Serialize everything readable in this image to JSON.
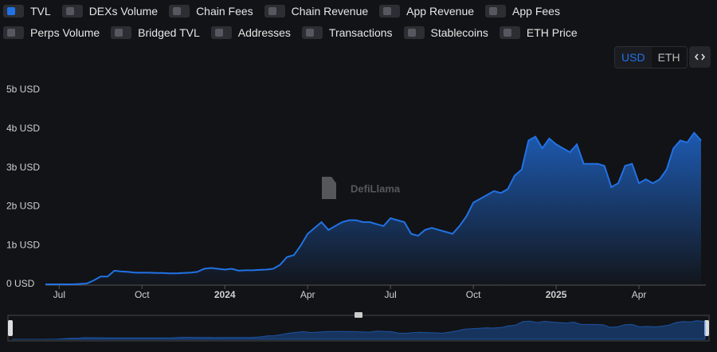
{
  "toggles": [
    "DEXs Volume",
    "Chain Fees",
    "Chain Revenue",
    "App Revenue",
    "App Fees",
    "Perps Volume",
    "Bridged TVL",
    "Addresses",
    "Transactions",
    "Stablecoins",
    "ETH Price"
  ],
  "currency": {
    "options": [
      "USD",
      "ETH"
    ],
    "active": 0
  },
  "chart_data": {
    "type": "area",
    "watermark": "DefiLlama",
    "categories": [
      null,
      null,
      "Jul",
      null,
      null,
      null,
      null,
      null,
      null,
      null,
      null,
      null,
      null,
      null,
      "Oct",
      null,
      null,
      null,
      null,
      null,
      null,
      null,
      null,
      null,
      null,
      null,
      "2024",
      null,
      null,
      null,
      null,
      null,
      null,
      null,
      null,
      null,
      null,
      null,
      "Apr",
      null,
      null,
      null,
      null,
      null,
      null,
      null,
      null,
      null,
      null,
      null,
      "Jul",
      null,
      null,
      null,
      null,
      null,
      null,
      null,
      null,
      null,
      null,
      null,
      "Oct",
      null,
      null,
      null,
      null,
      null,
      null,
      null,
      null,
      null,
      null,
      null,
      "2025",
      null,
      null,
      null,
      null,
      null,
      null,
      null,
      null,
      null,
      null,
      null,
      "Apr",
      null,
      null,
      null,
      null,
      null,
      null,
      null,
      null,
      null
    ],
    "series": [
      {
        "name": "TVL",
        "color": "#2172e5",
        "values": [
          0,
          0,
          0,
          0,
          0,
          10000000.0,
          20000000.0,
          100000000.0,
          200000000.0,
          200000000.0,
          350000000.0,
          330000000.0,
          320000000.0,
          300000000.0,
          300000000.0,
          300000000.0,
          290000000.0,
          290000000.0,
          280000000.0,
          280000000.0,
          290000000.0,
          300000000.0,
          320000000.0,
          400000000.0,
          420000000.0,
          400000000.0,
          380000000.0,
          400000000.0,
          350000000.0,
          360000000.0,
          360000000.0,
          370000000.0,
          380000000.0,
          400000000.0,
          500000000.0,
          700000000.0,
          750000000.0,
          1000000000.0,
          1300000000.0,
          1450000000.0,
          1600000000.0,
          1400000000.0,
          1500000000.0,
          1600000000.0,
          1650000000.0,
          1650000000.0,
          1600000000.0,
          1600000000.0,
          1550000000.0,
          1500000000.0,
          1700000000.0,
          1650000000.0,
          1600000000.0,
          1300000000.0,
          1250000000.0,
          1400000000.0,
          1450000000.0,
          1400000000.0,
          1350000000.0,
          1300000000.0,
          1500000000.0,
          1750000000.0,
          2100000000.0,
          2200000000.0,
          2300000000.0,
          2400000000.0,
          2350000000.0,
          2450000000.0,
          2800000000.0,
          2950000000.0,
          3700000000.0,
          3800000000.0,
          3500000000.0,
          3750000000.0,
          3600000000.0,
          3500000000.0,
          3400000000.0,
          3600000000.0,
          3100000000.0,
          3100000000.0,
          3100000000.0,
          3050000000.0,
          2500000000.0,
          2600000000.0,
          3050000000.0,
          3100000000.0,
          2600000000.0,
          2700000000.0,
          2600000000.0,
          2700000000.0,
          2950000000.0,
          3500000000.0,
          3700000000.0,
          3650000000.0,
          3900000000.0,
          3700000000.0
        ]
      }
    ],
    "ylim": [
      0,
      5000000000
    ],
    "yticks": [
      {
        "value": 0,
        "label": "0 USD"
      },
      {
        "value": 1000000000,
        "label": "1b USD"
      },
      {
        "value": 2000000000,
        "label": "2b USD"
      },
      {
        "value": 3000000000,
        "label": "3b USD"
      },
      {
        "value": 4000000000,
        "label": "4b USD"
      },
      {
        "value": 5000000000,
        "label": "5b USD"
      }
    ]
  }
}
